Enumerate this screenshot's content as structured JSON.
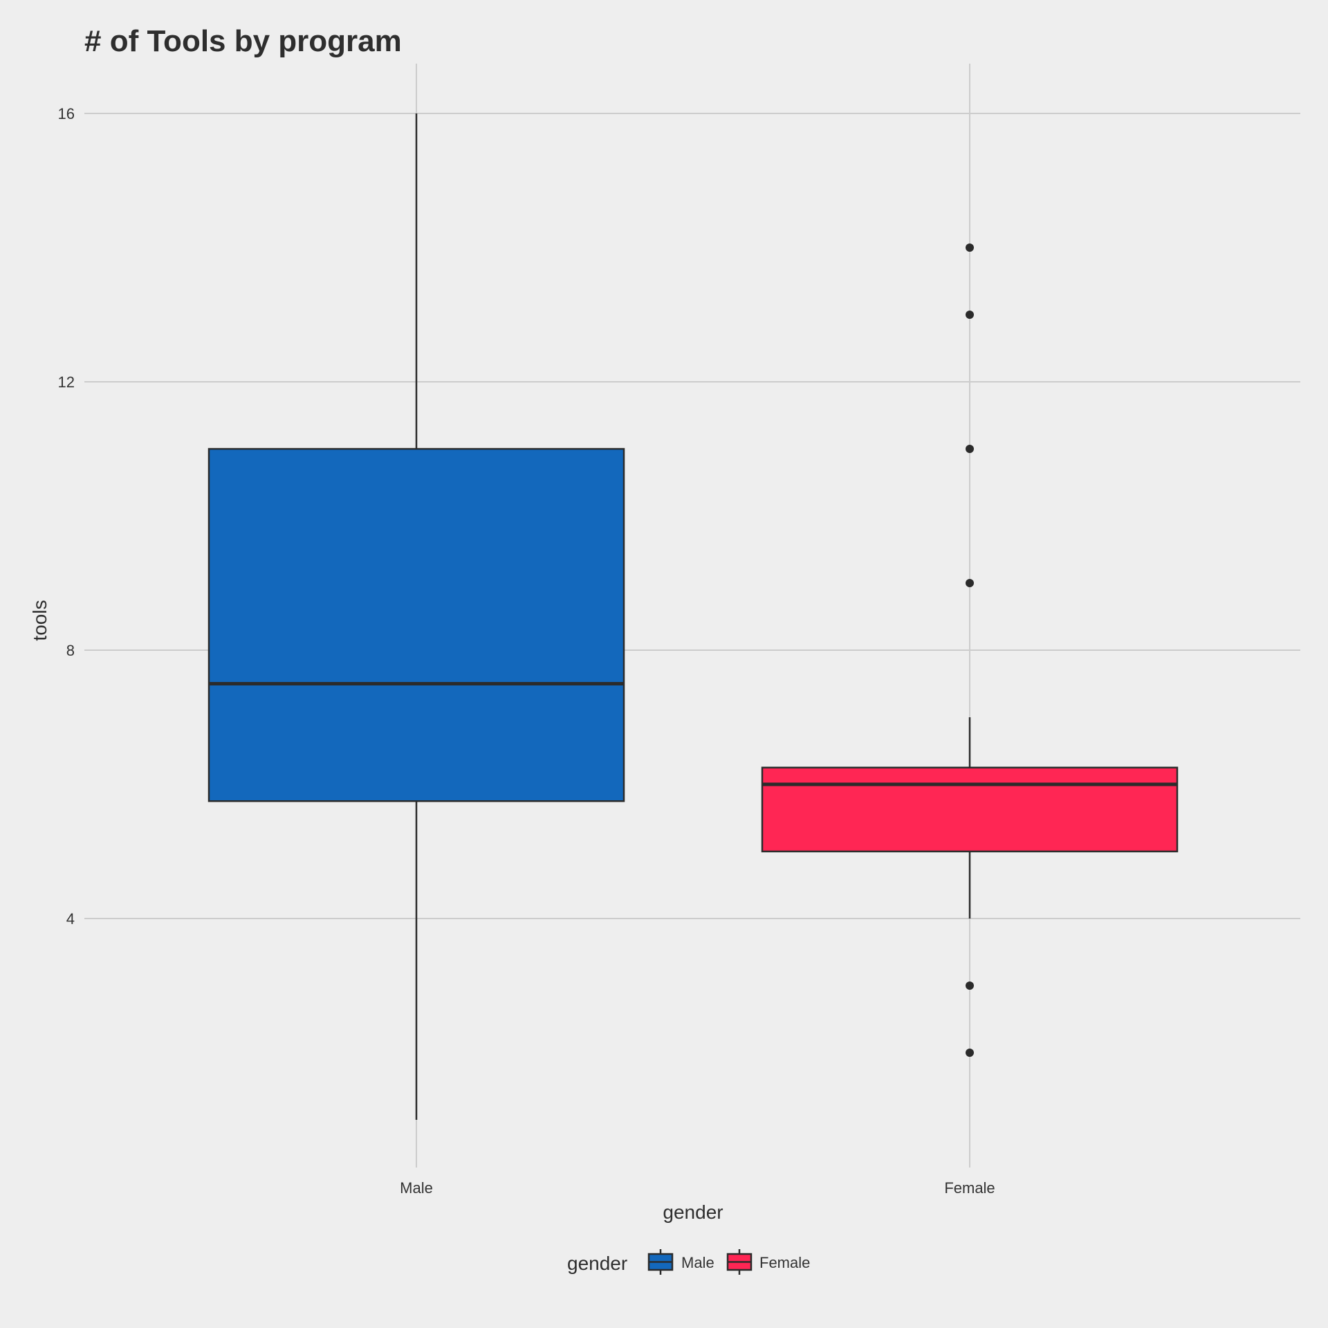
{
  "chart_data": {
    "type": "boxplot",
    "title": "# of Tools by program",
    "xlabel": "gender",
    "ylabel": "tools",
    "categories": [
      "Male",
      "Female"
    ],
    "yticks": [
      4,
      8,
      12,
      16
    ],
    "ylim": [
      0.65,
      16.75
    ],
    "grid": true,
    "legend": {
      "title": "gender",
      "placement": "bottom",
      "entries": [
        "Male",
        "Female"
      ]
    },
    "colors": {
      "Male": "#1368bc",
      "Female": "#ff2654",
      "background": "#eeeeee",
      "grid": "#cccccc",
      "stroke": "#2b2b2b"
    },
    "series": [
      {
        "category": "Male",
        "min": 1,
        "q1": 5.75,
        "median": 7.5,
        "q3": 11,
        "max": 16,
        "outliers": []
      },
      {
        "category": "Female",
        "min": 4,
        "q1": 5,
        "median": 6,
        "q3": 6.25,
        "max": 7,
        "outliers": [
          2,
          3,
          9,
          11,
          13,
          14
        ]
      }
    ]
  }
}
